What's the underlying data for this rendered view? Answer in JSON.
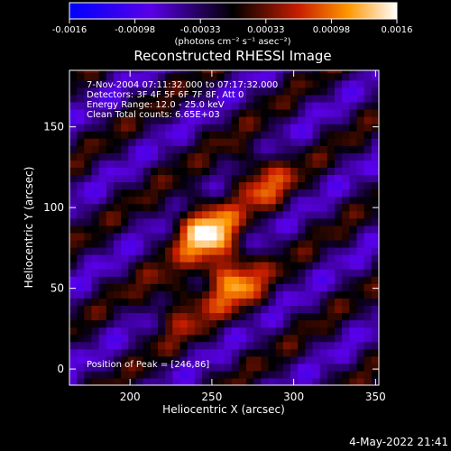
{
  "chart_data": {
    "type": "heatmap",
    "title": "Reconstructed RHESSI Image",
    "xlabel": "Heliocentric X (arcsec)",
    "ylabel": "Heliocentric Y (arcsec)",
    "xlim": [
      163,
      352
    ],
    "ylim": [
      -10,
      185
    ],
    "xticks": [
      200,
      250,
      300,
      350
    ],
    "yticks": [
      0,
      50,
      100,
      150
    ],
    "colorbar": {
      "range": [
        -0.0016,
        0.0016
      ],
      "ticks": [
        "-0.0016",
        "-0.00098",
        "-0.00033",
        "0.00033",
        "0.00098",
        "0.0016"
      ],
      "label": "(photons cm⁻² s⁻¹ asec⁻²)"
    },
    "annotations": [
      "7-Nov-2004 07:11:32.000 to 07:17:32.000",
      "Detectors: 3F 4F 5F 6F 7F 8F, Att 0",
      "Energy Range: 12.0 - 25.0 keV",
      "Clean    Total counts: 6.65E+03"
    ],
    "peak_label": "Position of Peak = [246,86]",
    "peak": [
      246,
      86
    ],
    "sources": [
      {
        "x": 246,
        "y": 86,
        "flux": 0.00155
      },
      {
        "x": 262,
        "y": 56,
        "flux": 0.00125
      },
      {
        "x": 280,
        "y": 118,
        "flux": 0.0009
      },
      {
        "x": 228,
        "y": 40,
        "flux": 0.0007
      }
    ],
    "background": {
      "stripe_angle_deg": 35,
      "stripe_period_arcsec": 42,
      "amplitude": 0.00085
    }
  },
  "footer": {
    "timestamp": "4-May-2022 21:41"
  }
}
